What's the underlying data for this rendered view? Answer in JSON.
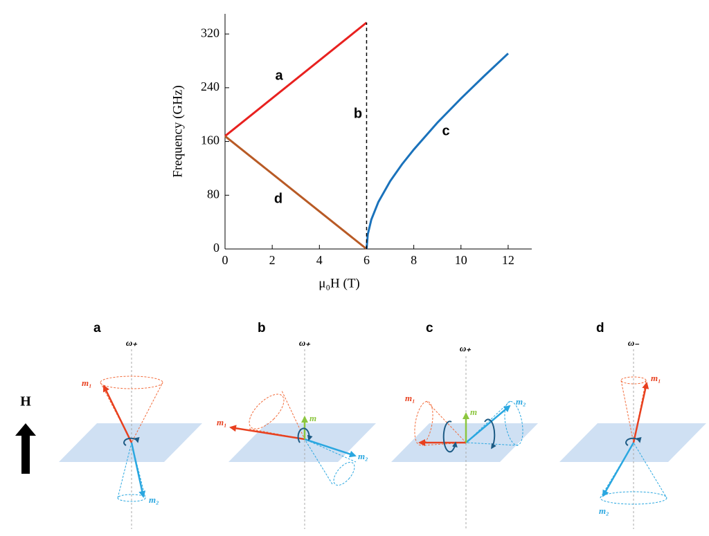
{
  "chart_data": {
    "type": "line",
    "xlabel": "μ₀H (T)",
    "ylabel": "Frequency (GHz)",
    "xlim": [
      0,
      13
    ],
    "ylim": [
      0,
      350
    ],
    "xticks": [
      0,
      2,
      4,
      6,
      8,
      10,
      12
    ],
    "yticks": [
      0,
      80,
      160,
      240,
      320
    ],
    "series": [
      {
        "name": "a",
        "color": "#e8211f",
        "linestyle": "solid",
        "x": [
          0,
          6
        ],
        "values": [
          168,
          337
        ]
      },
      {
        "name": "d",
        "color": "#b85a25",
        "linestyle": "solid",
        "x": [
          0,
          6
        ],
        "values": [
          168,
          0
        ]
      },
      {
        "name": "c",
        "color": "#1a72bb",
        "linestyle": "solid",
        "x": [
          6,
          6.05,
          6.2,
          6.5,
          7,
          7.5,
          8,
          9,
          10,
          11,
          12
        ],
        "values": [
          0,
          21.7,
          43.7,
          70,
          101,
          126,
          148,
          188,
          224,
          258,
          291
        ]
      },
      {
        "name": "b",
        "color": "#000000",
        "linestyle": "dashed",
        "x": [
          6,
          6
        ],
        "values": [
          0,
          337
        ]
      }
    ]
  },
  "diagrams": {
    "field_label": "H",
    "panels": [
      {
        "label": "a",
        "mode": "ω₊",
        "vectors": [
          "m₁",
          "m₂"
        ]
      },
      {
        "label": "b",
        "mode": "ω₊",
        "vectors": [
          "m₁",
          "m₂",
          "m"
        ]
      },
      {
        "label": "c",
        "mode": "ω₊",
        "vectors": [
          "m₁",
          "m₂",
          "m"
        ]
      },
      {
        "label": "d",
        "mode": "ω₋",
        "vectors": [
          "m₁",
          "m₂"
        ]
      }
    ]
  }
}
